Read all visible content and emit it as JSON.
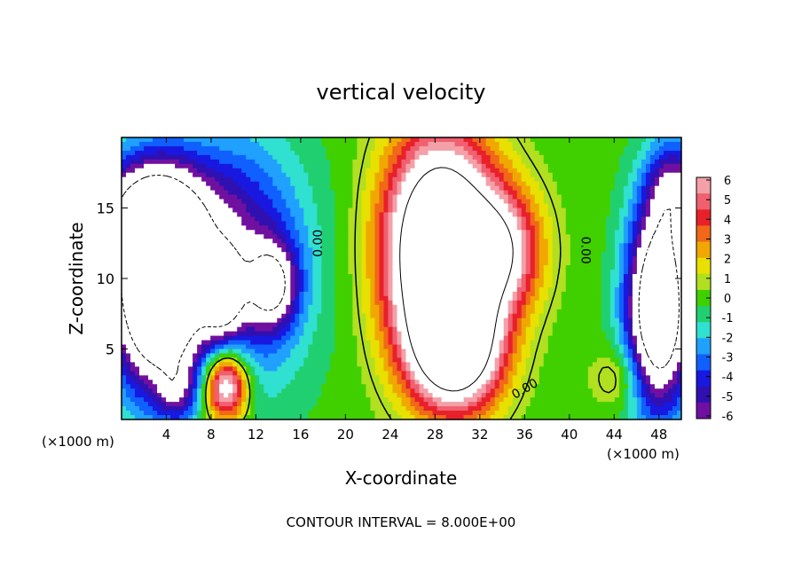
{
  "chart_data": {
    "type": "heatmap",
    "title": "vertical velocity",
    "xlabel": "X-coordinate",
    "ylabel": "Z-coordinate",
    "x_unit_left": "(×1000 m)",
    "x_unit_right": "(×1000 m)",
    "footer": "CONTOUR INTERVAL = 8.000E+00",
    "xlim": [
      0,
      50
    ],
    "ylim": [
      0,
      20
    ],
    "xticks": [
      4,
      8,
      12,
      16,
      20,
      24,
      28,
      32,
      36,
      40,
      44,
      48
    ],
    "yticks": [
      5,
      10,
      15
    ],
    "contour_labels": [
      {
        "text": "0.00",
        "x": 17.5,
        "y": 12.5,
        "rotate": -90
      },
      {
        "text": "0.00",
        "x": 41.5,
        "y": 12.0,
        "rotate": 90
      },
      {
        "text": "0.00",
        "x": 36.0,
        "y": 2.2,
        "rotate": -30
      }
    ],
    "colorbar": {
      "ticks": [
        "6",
        "5",
        "4",
        "3",
        "2",
        "1",
        "0",
        "-1",
        "-2",
        "-3",
        "-4",
        "-5",
        "-6"
      ],
      "colors": [
        "#f4a0a8",
        "#f06070",
        "#e8202a",
        "#f06818",
        "#f0a800",
        "#e8e000",
        "#b0e020",
        "#40d000",
        "#20d070",
        "#30e0d0",
        "#20a0ff",
        "#1060ff",
        "#1818e0",
        "#3010b0",
        "#7010a0"
      ]
    },
    "field": {
      "description": "vertical velocity (m/s), interpolated from visible features",
      "blobs": [
        {
          "x": 28.5,
          "y": 12.0,
          "sx": 3.4,
          "sy": 5.5,
          "a": 14
        },
        {
          "x": 30.0,
          "y": 5.0,
          "sx": 2.8,
          "sy": 3.0,
          "a": 9
        },
        {
          "x": 34.0,
          "y": 12.0,
          "sx": 2.5,
          "sy": 3.0,
          "a": 6
        },
        {
          "x": 9.3,
          "y": 2.4,
          "sx": 1.4,
          "sy": 1.8,
          "a": 9
        },
        {
          "x": 3.0,
          "y": 9.5,
          "sx": 2.8,
          "sy": 5.0,
          "a": -13
        },
        {
          "x": 10.0,
          "y": 11.0,
          "sx": 4.5,
          "sy": 6.0,
          "a": -6
        },
        {
          "x": 9.0,
          "y": 9.0,
          "sx": 1.2,
          "sy": 2.0,
          "a": -6
        },
        {
          "x": 13.5,
          "y": 9.5,
          "sx": 1.5,
          "sy": 2.0,
          "a": -6
        },
        {
          "x": 2.0,
          "y": 15.0,
          "sx": 4.0,
          "sy": 2.5,
          "a": -5
        },
        {
          "x": 48.0,
          "y": 8.0,
          "sx": 2.0,
          "sy": 5.0,
          "a": -12
        },
        {
          "x": 49.5,
          "y": 16.5,
          "sx": 1.8,
          "sy": 2.5,
          "a": -5
        },
        {
          "x": 5.0,
          "y": 2.0,
          "sx": 1.2,
          "sy": 1.4,
          "a": -3
        },
        {
          "x": 44.5,
          "y": 3.0,
          "sx": 1.6,
          "sy": 1.5,
          "a": 2
        }
      ]
    }
  }
}
